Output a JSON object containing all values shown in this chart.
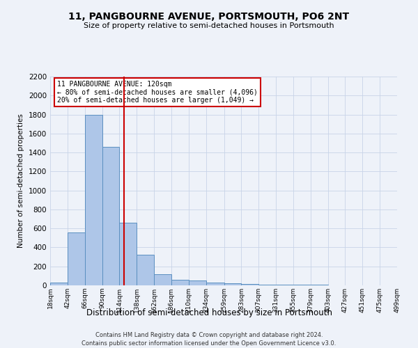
{
  "title": "11, PANGBOURNE AVENUE, PORTSMOUTH, PO6 2NT",
  "subtitle": "Size of property relative to semi-detached houses in Portsmouth",
  "xlabel": "Distribution of semi-detached houses by size in Portsmouth",
  "ylabel": "Number of semi-detached properties",
  "annotation_title": "11 PANGBOURNE AVENUE: 120sqm",
  "annotation_line1": "← 80% of semi-detached houses are smaller (4,096)",
  "annotation_line2": "20% of semi-detached houses are larger (1,049) →",
  "footer_line1": "Contains HM Land Registry data © Crown copyright and database right 2024.",
  "footer_line2": "Contains public sector information licensed under the Open Government Licence v3.0.",
  "bin_edges": [
    18,
    42,
    66,
    90,
    114,
    138,
    162,
    186,
    210,
    234,
    259,
    283,
    307,
    331,
    355,
    379,
    403,
    427,
    451,
    475,
    499
  ],
  "bin_labels": [
    "18sqm",
    "42sqm",
    "66sqm",
    "90sqm",
    "114sqm",
    "138sqm",
    "162sqm",
    "186sqm",
    "210sqm",
    "234sqm",
    "259sqm",
    "283sqm",
    "307sqm",
    "331sqm",
    "355sqm",
    "379sqm",
    "403sqm",
    "427sqm",
    "451sqm",
    "475sqm",
    "499sqm"
  ],
  "bar_heights": [
    30,
    560,
    1800,
    1460,
    660,
    320,
    120,
    60,
    50,
    30,
    20,
    15,
    10,
    8,
    5,
    4,
    3,
    2,
    1,
    1
  ],
  "property_size": 120,
  "bar_color": "#aec6e8",
  "bar_edge_color": "#5a8fc0",
  "redline_color": "#cc0000",
  "annotation_box_color": "#cc0000",
  "grid_color": "#c8d4e8",
  "background_color": "#eef2f9",
  "ylim": [
    0,
    2200
  ],
  "yticks": [
    0,
    200,
    400,
    600,
    800,
    1000,
    1200,
    1400,
    1600,
    1800,
    2000,
    2200
  ]
}
